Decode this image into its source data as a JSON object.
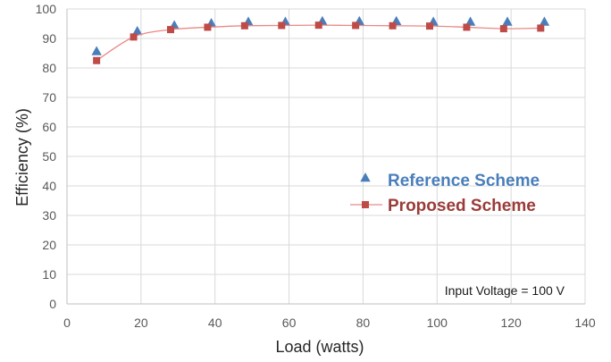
{
  "chart_data": {
    "type": "line",
    "title": "",
    "xlabel": "Load (watts)",
    "ylabel": "Efficiency (%)",
    "xlim": [
      0,
      140
    ],
    "ylim": [
      0,
      100
    ],
    "x_ticks": [
      0,
      20,
      40,
      60,
      80,
      100,
      120,
      140
    ],
    "y_ticks": [
      0,
      10,
      20,
      30,
      40,
      50,
      60,
      70,
      80,
      90,
      100
    ],
    "grid": true,
    "legend_position": "right-middle",
    "annotation": "Input Voltage = 100 V",
    "series": [
      {
        "name": "Reference Scheme",
        "marker": "triangle",
        "line": false,
        "color": "#4a7ebb",
        "x": [
          8,
          19,
          29,
          39,
          49,
          59,
          69,
          79,
          89,
          99,
          109,
          119,
          129
        ],
        "y": [
          85,
          91.8,
          93.8,
          94.5,
          95,
          95,
          95.2,
          95.2,
          95.2,
          95,
          95,
          95,
          95
        ]
      },
      {
        "name": "Proposed Scheme",
        "marker": "square",
        "line": true,
        "color": "#be4b48",
        "line_color": "#e88a86",
        "x": [
          8,
          18,
          28,
          38,
          48,
          58,
          68,
          78,
          88,
          98,
          108,
          118,
          128
        ],
        "y": [
          82.5,
          90.5,
          93,
          93.8,
          94.3,
          94.4,
          94.5,
          94.4,
          94.3,
          94.2,
          93.8,
          93.3,
          93.5
        ]
      }
    ]
  }
}
